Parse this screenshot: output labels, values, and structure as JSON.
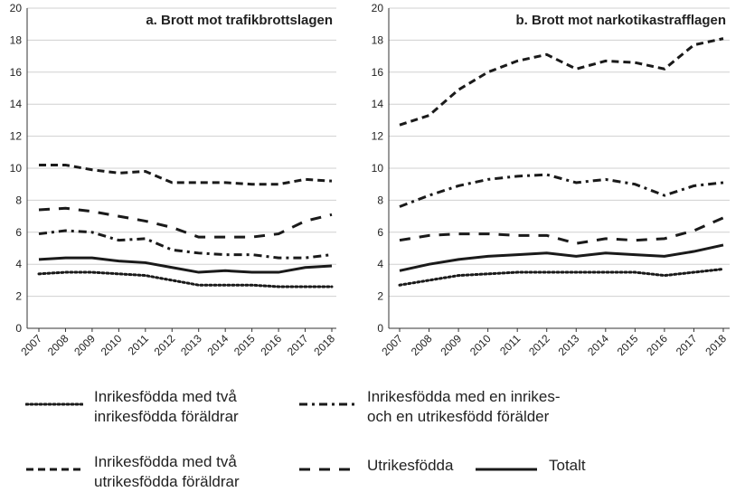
{
  "chart_data": [
    {
      "type": "line",
      "title": "a. Brott mot trafikbrottslagen",
      "categories": [
        "2007",
        "2008",
        "2009",
        "2010",
        "2011",
        "2012",
        "2013",
        "2014",
        "2015",
        "2016",
        "2017",
        "2018"
      ],
      "ylim": [
        0,
        20
      ],
      "yticks": [
        0,
        2,
        4,
        6,
        8,
        10,
        12,
        14,
        16,
        18,
        20
      ],
      "grid": true,
      "series": [
        {
          "name": "Inrikesfödda med två\ninrikesfödda föräldrar",
          "color": "#1a1a1a",
          "style": "dotted",
          "values": [
            3.4,
            3.5,
            3.5,
            3.4,
            3.3,
            3.0,
            2.7,
            2.7,
            2.7,
            2.6,
            2.6,
            2.6
          ]
        },
        {
          "name": "Inrikesfödda med en inrikes-\noch en utrikesfödd förälder",
          "color": "#1a1a1a",
          "style": "dashdot",
          "values": [
            5.9,
            6.1,
            6.0,
            5.5,
            5.6,
            4.9,
            4.7,
            4.6,
            4.6,
            4.4,
            4.4,
            4.6
          ]
        },
        {
          "name": "Inrikesfödda med två\nutrikesfödda föräldrar",
          "color": "#1a1a1a",
          "style": "dashed",
          "values": [
            10.2,
            10.2,
            9.9,
            9.7,
            9.8,
            9.1,
            9.1,
            9.1,
            9.0,
            9.0,
            9.3,
            9.2
          ]
        },
        {
          "name": "Utrikesfödda",
          "color": "#1a1a1a",
          "style": "longdash",
          "values": [
            7.4,
            7.5,
            7.3,
            7.0,
            6.7,
            6.3,
            5.7,
            5.7,
            5.7,
            5.9,
            6.7,
            7.1
          ]
        },
        {
          "name": "Totalt",
          "color": "#1a1a1a",
          "style": "solid",
          "values": [
            4.3,
            4.4,
            4.4,
            4.2,
            4.1,
            3.8,
            3.5,
            3.6,
            3.5,
            3.5,
            3.8,
            3.9
          ]
        }
      ]
    },
    {
      "type": "line",
      "title": "b. Brott mot narkotikastrafflagen",
      "categories": [
        "2007",
        "2008",
        "2009",
        "2010",
        "2011",
        "2012",
        "2013",
        "2014",
        "2015",
        "2016",
        "2017",
        "2018"
      ],
      "ylim": [
        0,
        20
      ],
      "yticks": [
        0,
        2,
        4,
        6,
        8,
        10,
        12,
        14,
        16,
        18,
        20
      ],
      "grid": true,
      "series": [
        {
          "color": "#1a1a1a",
          "style": "dotted",
          "values": [
            2.7,
            3.0,
            3.3,
            3.4,
            3.5,
            3.5,
            3.5,
            3.5,
            3.5,
            3.3,
            3.5,
            3.7
          ]
        },
        {
          "color": "#1a1a1a",
          "style": "dashdot",
          "values": [
            7.6,
            8.3,
            8.9,
            9.3,
            9.5,
            9.6,
            9.1,
            9.3,
            9.0,
            8.3,
            8.9,
            9.1
          ]
        },
        {
          "color": "#1a1a1a",
          "style": "dashed",
          "values": [
            12.7,
            13.3,
            14.9,
            16.0,
            16.7,
            17.1,
            16.2,
            16.7,
            16.6,
            16.2,
            17.7,
            18.1
          ]
        },
        {
          "color": "#1a1a1a",
          "style": "longdash",
          "values": [
            5.5,
            5.8,
            5.9,
            5.9,
            5.8,
            5.8,
            5.3,
            5.6,
            5.5,
            5.6,
            6.1,
            6.9
          ]
        },
        {
          "color": "#1a1a1a",
          "style": "solid",
          "values": [
            3.6,
            4.0,
            4.3,
            4.5,
            4.6,
            4.7,
            4.5,
            4.7,
            4.6,
            4.5,
            4.8,
            5.2
          ]
        }
      ]
    }
  ]
}
